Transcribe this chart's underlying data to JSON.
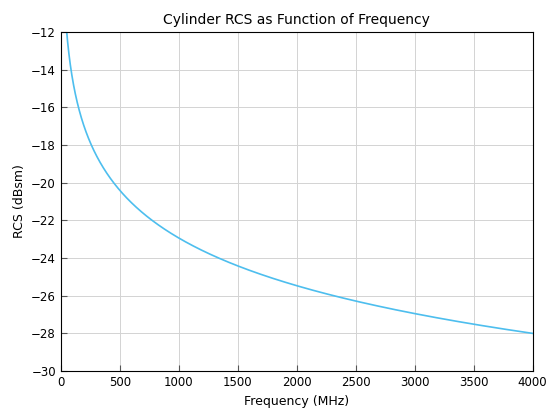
{
  "title": "Cylinder RCS as Function of Frequency",
  "xlabel": "Frequency (MHz)",
  "ylabel": "RCS (dBsm)",
  "xlim": [
    0,
    4000
  ],
  "ylim": [
    -30,
    -12
  ],
  "xticks": [
    0,
    500,
    1000,
    1500,
    2000,
    2500,
    3000,
    3500,
    4000
  ],
  "yticks": [
    -30,
    -28,
    -26,
    -24,
    -22,
    -20,
    -18,
    -16,
    -14,
    -12
  ],
  "line_color": "#4DBEEE",
  "line_width": 1.2,
  "freq_start": 10,
  "freq_end": 4000,
  "background_color": "#FFFFFF",
  "grid_color": "#D3D3D3",
  "axes_bg": "#FFFFFF",
  "title_fontsize": 10,
  "label_fontsize": 9,
  "tick_fontsize": 8.5
}
